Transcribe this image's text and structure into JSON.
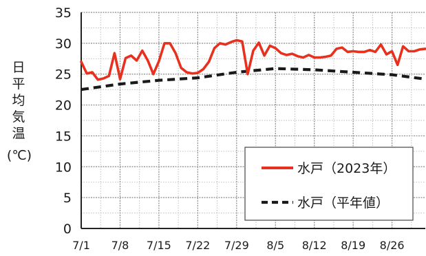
{
  "chart_data": {
    "type": "line",
    "ylabel": "日平均気温(℃)",
    "ylim": [
      0,
      35
    ],
    "yticks": [
      0,
      5,
      10,
      15,
      20,
      25,
      30,
      35
    ],
    "xlim_day": [
      1,
      63
    ],
    "xticks": [
      {
        "day": 1,
        "label": "7/1"
      },
      {
        "day": 8,
        "label": "7/8"
      },
      {
        "day": 15,
        "label": "7/15"
      },
      {
        "day": 22,
        "label": "7/22"
      },
      {
        "day": 29,
        "label": "7/29"
      },
      {
        "day": 36,
        "label": "8/5"
      },
      {
        "day": 43,
        "label": "8/12"
      },
      {
        "day": 50,
        "label": "8/19"
      },
      {
        "day": 57,
        "label": "8/26"
      }
    ],
    "grid": true,
    "legend_position": "bottom-right",
    "series": [
      {
        "name": "水戸（2023年）",
        "color": "#e8301e",
        "style": "solid",
        "x": [
          1,
          2,
          3,
          4,
          5,
          6,
          7,
          8,
          9,
          10,
          11,
          12,
          13,
          14,
          15,
          16,
          17,
          18,
          19,
          20,
          21,
          22,
          23,
          24,
          25,
          26,
          27,
          28,
          29,
          30,
          31,
          32,
          33,
          34,
          35,
          36,
          37,
          38,
          39,
          40,
          41,
          42,
          43,
          44,
          45,
          46,
          47,
          48,
          49,
          50,
          51,
          52,
          53,
          54,
          55,
          56,
          57,
          58,
          59,
          60,
          61,
          62,
          63
        ],
        "values": [
          27.0,
          25.1,
          25.3,
          24.1,
          24.3,
          24.7,
          28.4,
          24.2,
          27.6,
          28.0,
          27.2,
          28.8,
          27.2,
          25.0,
          27.1,
          30.0,
          30.0,
          28.4,
          26.0,
          25.3,
          25.1,
          25.2,
          25.8,
          27.0,
          29.2,
          30.0,
          29.8,
          30.2,
          30.5,
          30.3,
          25.0,
          28.8,
          30.1,
          28.0,
          29.6,
          29.2,
          28.4,
          28.1,
          28.3,
          27.9,
          27.7,
          28.1,
          27.7,
          27.7,
          27.8,
          28.0,
          29.1,
          29.3,
          28.6,
          28.7,
          28.6,
          28.6,
          28.9,
          28.6,
          29.8,
          28.2,
          28.7,
          26.5,
          29.5,
          28.7,
          28.7,
          29.0,
          29.1
        ]
      },
      {
        "name": "水戸（平年値）",
        "color": "#1a1a1a",
        "style": "dashed",
        "x": [
          1,
          8,
          15,
          22,
          29,
          36,
          43,
          50,
          57,
          63
        ],
        "values": [
          22.5,
          23.4,
          24.0,
          24.4,
          25.3,
          25.9,
          25.7,
          25.3,
          24.9,
          24.2
        ]
      }
    ]
  }
}
